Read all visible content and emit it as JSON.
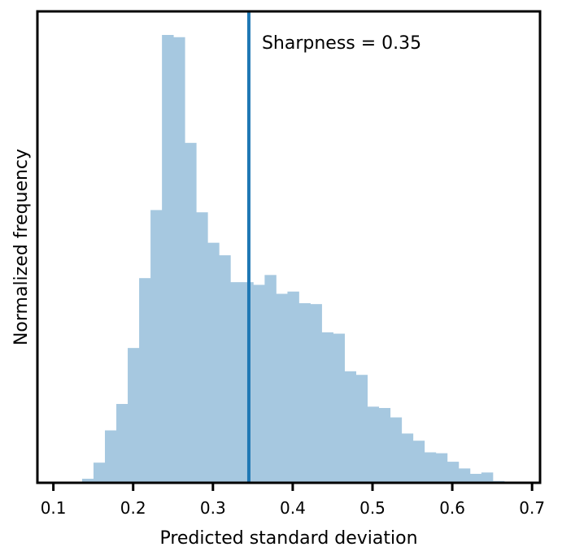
{
  "chart_data": {
    "type": "bar",
    "subtype": "histogram",
    "title": "",
    "xlabel": "Predicted standard deviation",
    "ylabel": "Normalized frequency",
    "xlim": [
      0.08,
      0.71
    ],
    "ylim": [
      0,
      1.0
    ],
    "y_tick_labels_shown": false,
    "grid": false,
    "legend": "none",
    "xticks": [
      0.1,
      0.2,
      0.3,
      0.4,
      0.5,
      0.6,
      0.7
    ],
    "xtick_labels": [
      "0.1",
      "0.2",
      "0.3",
      "0.4",
      "0.5",
      "0.6",
      "0.7"
    ],
    "bins": {
      "start": 0.136,
      "width": 0.0143,
      "values": [
        0.009,
        0.045,
        0.117,
        0.176,
        0.301,
        0.457,
        0.609,
        1.0,
        0.995,
        0.759,
        0.604,
        0.536,
        0.508,
        0.448,
        0.448,
        0.442,
        0.464,
        0.422,
        0.427,
        0.401,
        0.399,
        0.336,
        0.333,
        0.249,
        0.241,
        0.17,
        0.167,
        0.146,
        0.11,
        0.094,
        0.068,
        0.066,
        0.047,
        0.032,
        0.02,
        0.023,
        0.004
      ]
    },
    "bar_color": "#a6c8e0",
    "reference_line": {
      "x": 0.345,
      "color": "#1f78b4",
      "label": "Sharpness = 0.35"
    }
  }
}
